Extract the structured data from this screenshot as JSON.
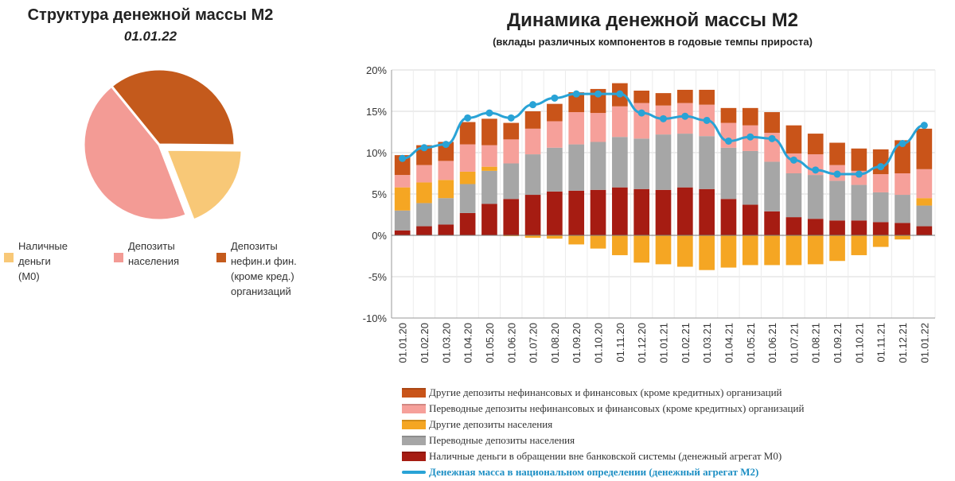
{
  "left": {
    "title": "Структура денежной массы М2",
    "date": "01.01.22",
    "legend": [
      {
        "label_lines": [
          "Наличные",
          "деньги",
          "(М0)"
        ],
        "color": "#f8c877"
      },
      {
        "label_lines": [
          "Депозиты",
          "населения"
        ],
        "color": "#f39b95"
      },
      {
        "label_lines": [
          "Депозиты",
          "нефин.и фин.",
          "(кроме кред.)",
          "организаций"
        ],
        "color": "#c45a1c"
      }
    ]
  },
  "right": {
    "title": "Динамика денежной массы М2",
    "subtitle": "(вклады различных компонентов в годовые темпы прироста)",
    "legend": [
      {
        "label": "Другие депозиты нефинансовых и финансовых (кроме кредитных)  организаций",
        "color": "#c95419",
        "kind": "bar"
      },
      {
        "label": "Переводные депозиты нефинансовых и финансовых (кроме кредитных)  организаций",
        "color": "#f6a09a",
        "kind": "bar"
      },
      {
        "label": "Другие депозиты населения",
        "color": "#f5a623",
        "kind": "bar"
      },
      {
        "label": "Переводные депозиты населения",
        "color": "#a6a6a6",
        "kind": "bar"
      },
      {
        "label": "Наличные деньги в обращении вне банковской системы (денежный агрегат М0)",
        "color": "#a61c12",
        "kind": "bar"
      },
      {
        "label": "Денежная масса в национальном  определении  (денежный агрегат  М2)",
        "color": "#29a3d6",
        "kind": "line"
      }
    ]
  },
  "chart_data": [
    {
      "type": "pie",
      "title": "Структура денежной массы М2",
      "subtitle": "01.01.22",
      "categories": [
        "Наличные деньги (М0)",
        "Депозиты населения",
        "Депозиты нефин.и фин. (кроме кред.) организаций"
      ],
      "values": [
        19,
        45,
        36
      ],
      "colors": [
        "#f8c877",
        "#f39b95",
        "#c45a1c"
      ],
      "exploded": [
        true,
        false,
        false
      ]
    },
    {
      "type": "bar",
      "stacked": true,
      "title": "Динамика денежной массы М2",
      "subtitle": "(вклады различных компонентов в годовые темпы прироста)",
      "categories": [
        "01.01.20",
        "01.02.20",
        "01.03.20",
        "01.04.20",
        "01.05.20",
        "01.06.20",
        "01.07.20",
        "01.08.20",
        "01.09.20",
        "01.10.20",
        "01.11.20",
        "01.12.20",
        "01.01.21",
        "01.02.21",
        "01.03.21",
        "01.04.21",
        "01.05.21",
        "01.06.21",
        "01.07.21",
        "01.08.21",
        "01.09.21",
        "01.10.21",
        "01.11.21",
        "01.12.21",
        "01.01.22"
      ],
      "y_ticks": [
        "-10%",
        "-5%",
        "0%",
        "5%",
        "10%",
        "15%",
        "20%"
      ],
      "ylim": [
        -10,
        20
      ],
      "series": [
        {
          "name": "Наличные деньги в обращении вне банковской системы (денежный агрегат М0)",
          "color": "#a61c12",
          "values": [
            0.6,
            1.1,
            1.3,
            2.7,
            3.8,
            4.4,
            4.9,
            5.3,
            5.4,
            5.5,
            5.8,
            5.6,
            5.5,
            5.8,
            5.6,
            4.4,
            3.7,
            2.9,
            2.2,
            2.0,
            1.8,
            1.8,
            1.6,
            1.5,
            1.1
          ]
        },
        {
          "name": "Переводные депозиты населения",
          "color": "#a6a6a6",
          "values": [
            2.4,
            2.8,
            3.2,
            3.5,
            4.0,
            4.3,
            4.9,
            5.3,
            5.6,
            5.8,
            6.1,
            6.1,
            6.7,
            6.5,
            6.4,
            6.2,
            6.5,
            6.0,
            5.3,
            5.3,
            4.8,
            4.3,
            3.6,
            3.4,
            2.5
          ]
        },
        {
          "name": "Другие депозиты населения",
          "color": "#f5a623",
          "values": [
            2.8,
            2.5,
            2.2,
            1.5,
            0.5,
            -0.1,
            -0.3,
            -0.4,
            -1.1,
            -1.6,
            -2.4,
            -3.3,
            -3.5,
            -3.8,
            -4.2,
            -3.9,
            -3.6,
            -3.6,
            -3.6,
            -3.5,
            -3.1,
            -2.4,
            -1.4,
            -0.5,
            0.9
          ]
        },
        {
          "name": "Переводные депозиты нефинансовых и финансовых (кроме кредитных)  организаций",
          "color": "#f6a09a",
          "values": [
            1.5,
            2.1,
            2.3,
            3.3,
            2.6,
            2.9,
            3.1,
            3.2,
            3.9,
            3.5,
            3.7,
            4.3,
            3.5,
            3.7,
            3.8,
            3.0,
            3.1,
            3.5,
            2.4,
            2.5,
            1.9,
            1.7,
            2.2,
            2.6,
            3.5
          ]
        },
        {
          "name": "Другие депозиты нефинансовых и финансовых (кроме кредитных)  организаций",
          "color": "#c95419",
          "values": [
            2.4,
            2.4,
            2.3,
            2.7,
            3.2,
            2.0,
            2.1,
            2.1,
            2.4,
            2.9,
            2.8,
            1.5,
            1.5,
            1.6,
            1.8,
            1.8,
            2.1,
            2.5,
            3.4,
            2.5,
            2.7,
            2.7,
            3.0,
            4.0,
            4.9
          ]
        }
      ],
      "line": {
        "name": "Денежная масса в национальном  определении  (денежный агрегат  М2)",
        "color": "#29a3d6",
        "values": [
          9.3,
          10.6,
          11.0,
          14.2,
          14.8,
          14.2,
          15.8,
          16.6,
          17.1,
          17.1,
          17.1,
          14.8,
          14.1,
          14.4,
          13.9,
          11.4,
          11.9,
          11.7,
          9.1,
          7.9,
          7.4,
          7.4,
          8.3,
          11.1,
          13.3
        ]
      }
    }
  ]
}
